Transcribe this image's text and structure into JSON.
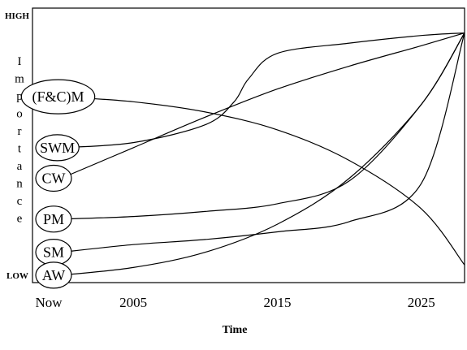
{
  "chart_data": {
    "type": "line",
    "title": "",
    "xlabel": "Time",
    "ylabel": "Importance",
    "y_high_label": "HIGH",
    "y_low_label": "LOW",
    "x_tick_labels": [
      "Now",
      "2005",
      "2015",
      "2025"
    ],
    "x_tick_values": [
      1998,
      2005,
      2015,
      2025
    ],
    "xlim": [
      1998,
      2028
    ],
    "ylim": [
      0,
      100
    ],
    "grid": false,
    "legend": "none",
    "line_color": "#000000",
    "series": [
      {
        "name": "(F&C)M",
        "x": [
          2000,
          2005,
          2010,
          2015,
          2020,
          2025,
          2028
        ],
        "y": [
          71,
          69,
          65,
          58,
          46,
          27,
          5
        ]
      },
      {
        "name": "SWM",
        "x": [
          2000,
          2005,
          2010,
          2012,
          2013,
          2015,
          2020,
          2025,
          2028
        ],
        "y": [
          51,
          53,
          60,
          69,
          78,
          88,
          92,
          95,
          96
        ]
      },
      {
        "name": "CW",
        "x": [
          2000,
          2005,
          2010,
          2015,
          2020,
          2025,
          2028
        ],
        "y": [
          39,
          51,
          63,
          74,
          83,
          91,
          96
        ]
      },
      {
        "name": "PM",
        "x": [
          2000,
          2005,
          2010,
          2015,
          2020,
          2025,
          2028
        ],
        "y": [
          23,
          24,
          26,
          29,
          38,
          68,
          96
        ]
      },
      {
        "name": "SM",
        "x": [
          2000,
          2005,
          2010,
          2015,
          2020,
          2025,
          2028
        ],
        "y": [
          10,
          13,
          15,
          18,
          22,
          37,
          96
        ]
      },
      {
        "name": "AW",
        "x": [
          2000,
          2005,
          2010,
          2015,
          2020,
          2025,
          2028
        ],
        "y": [
          1,
          4,
          10,
          21,
          39,
          68,
          96
        ]
      }
    ]
  }
}
